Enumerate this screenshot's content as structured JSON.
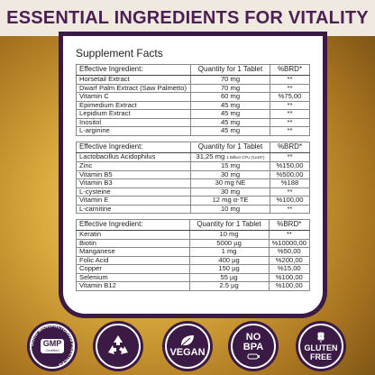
{
  "header": {
    "title": "ESSENTIAL INGREDIENTS FOR VITALITY"
  },
  "panel": {
    "title": "Supplement Facts"
  },
  "columns": {
    "ingredient": "Effective Ingredient:",
    "quantity": "Quantity for 1 Tablet",
    "brd": "%BRD*"
  },
  "tables": [
    {
      "rows": [
        {
          "name": "Horsetail Extract",
          "qty": "70 mg",
          "brd": "**"
        },
        {
          "name": "Dwarf Palm Extract (Saw Palmetto)",
          "qty": "70 mg",
          "brd": "**"
        },
        {
          "name": "Vitamin C",
          "qty": "60 mg",
          "brd": "%75,00"
        },
        {
          "name": "Epimedium Extract",
          "qty": "45 mg",
          "brd": "**"
        },
        {
          "name": "Lepidium Extract",
          "qty": "45 mg",
          "brd": "**"
        },
        {
          "name": "Inositol",
          "qty": "45 mg",
          "brd": "**"
        },
        {
          "name": "L-arginine",
          "qty": "45 mg",
          "brd": "**"
        }
      ]
    },
    {
      "rows": [
        {
          "name": "Lactobacillus Acidophilus",
          "qty": "31,25 mg",
          "qty_note": "1 Billion CFU (1x10⁹)",
          "brd": "**"
        },
        {
          "name": "Zinc",
          "qty": "15 mg",
          "brd": "%150,00"
        },
        {
          "name": "Vitamin B5",
          "qty": "30 mg",
          "brd": "%500,00"
        },
        {
          "name": "Vitamin B3",
          "qty": "30 mg NE",
          "brd": "%188"
        },
        {
          "name": "L-cysteine",
          "qty": "30 mg",
          "brd": "**"
        },
        {
          "name": "Vitamin E",
          "qty": "12 mg α-TE",
          "brd": "%100,00"
        },
        {
          "name": "L-carnitine",
          "qty": "10 mg",
          "brd": "**"
        }
      ]
    },
    {
      "rows": [
        {
          "name": "Keratin",
          "qty": "10 mg",
          "brd": "**"
        },
        {
          "name": "Biotin",
          "qty": "5000 µg",
          "brd": "%10000,00"
        },
        {
          "name": "Manganese",
          "qty": "1 mg",
          "brd": "%50,00"
        },
        {
          "name": "Folic Acid",
          "qty": "400 µg",
          "brd": "%200,00"
        },
        {
          "name": "Copper",
          "qty": "150 µg",
          "brd": "%15,00"
        },
        {
          "name": "Selenium",
          "qty": "55 µg",
          "brd": "%100,00"
        },
        {
          "name": "Vitamin B12",
          "qty": "2.5 µg",
          "brd": "%100,00"
        }
      ]
    }
  ],
  "badges": {
    "gmp": {
      "text": "GMP",
      "sub": "Certified",
      "ring": "GOOD MANUFACTURING PRACTICES"
    },
    "vegan": {
      "text": "VEGAN"
    },
    "nobpa": {
      "line1": "NO",
      "line2": "BPA"
    },
    "gluten": {
      "line1": "GLUTEN",
      "line2": "FREE"
    }
  },
  "colors": {
    "accent": "#3b1a45",
    "header_text": "#4a1f52",
    "gold": "#d9a93c"
  }
}
